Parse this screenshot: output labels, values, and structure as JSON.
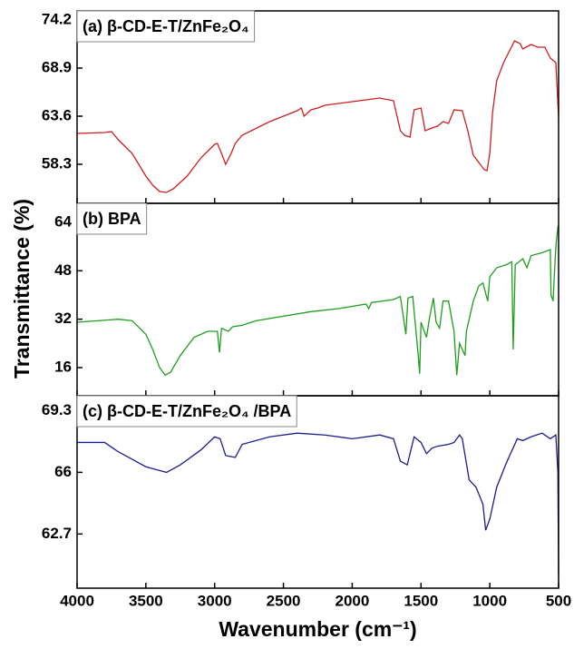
{
  "chart_data": [
    {
      "type": "line",
      "title": "(a) β-CD-E-T/ZnFe₂O₄",
      "color": "#cc1f1f",
      "xlim": [
        4000,
        500
      ],
      "ylim": [
        54.0,
        75.2
      ],
      "yticks": [
        74.2,
        68.9,
        63.6,
        58.3
      ],
      "x": [
        4000,
        3800,
        3750,
        3700,
        3600,
        3500,
        3450,
        3400,
        3350,
        3300,
        3200,
        3100,
        3000,
        2980,
        2950,
        2920,
        2880,
        2850,
        2800,
        2600,
        2400,
        2370,
        2350,
        2300,
        2250,
        2200,
        2000,
        1800,
        1700,
        1650,
        1620,
        1580,
        1550,
        1500,
        1470,
        1420,
        1380,
        1340,
        1300,
        1260,
        1200,
        1160,
        1120,
        1080,
        1040,
        1020,
        1000,
        980,
        950,
        900,
        850,
        820,
        780,
        760,
        700,
        650,
        600,
        560,
        520,
        505,
        500
      ],
      "values": [
        61.7,
        61.8,
        61.9,
        61.0,
        59.5,
        57.0,
        56.0,
        55.3,
        55.2,
        55.6,
        57.0,
        59.0,
        60.5,
        60.6,
        59.5,
        58.3,
        59.5,
        60.6,
        61.5,
        63.0,
        64.2,
        64.5,
        63.6,
        64.3,
        64.5,
        64.8,
        65.2,
        65.6,
        65.3,
        62.0,
        61.5,
        61.3,
        64.3,
        64.5,
        62.0,
        62.3,
        62.5,
        63.0,
        62.8,
        64.3,
        64.2,
        62.0,
        59.3,
        58.5,
        57.7,
        57.6,
        59.5,
        64.0,
        67.5,
        69.5,
        71.0,
        71.9,
        71.6,
        71.0,
        71.5,
        71.2,
        71.2,
        70.0,
        69.5,
        65.0,
        63.5
      ]
    },
    {
      "type": "line",
      "title": "(b) BPA",
      "color": "#1e9e1e",
      "ylabel": "Transmittance (%)",
      "xlim": [
        4000,
        500
      ],
      "ylim": [
        6.7,
        70.3
      ],
      "yticks": [
        64,
        48,
        32,
        16
      ],
      "x": [
        4000,
        3700,
        3600,
        3500,
        3450,
        3400,
        3360,
        3320,
        3250,
        3150,
        3050,
        2980,
        2965,
        2950,
        2900,
        2870,
        2800,
        2700,
        2500,
        2300,
        2100,
        1900,
        1880,
        1860,
        1700,
        1650,
        1610,
        1595,
        1560,
        1520,
        1510,
        1500,
        1460,
        1440,
        1410,
        1390,
        1365,
        1340,
        1300,
        1260,
        1240,
        1220,
        1180,
        1170,
        1120,
        1080,
        1050,
        1015,
        1000,
        950,
        880,
        840,
        830,
        815,
        760,
        730,
        700,
        620,
        560,
        555,
        540,
        520,
        505,
        500
      ],
      "values": [
        31,
        32,
        31.5,
        27,
        22,
        16,
        13.5,
        14.5,
        20,
        26,
        28,
        28,
        21,
        29,
        28,
        29.5,
        30,
        31.5,
        33,
        34.5,
        35.5,
        37,
        35.5,
        37.5,
        38.5,
        39.5,
        27,
        39,
        39.5,
        20,
        14,
        31,
        26,
        32,
        39,
        31,
        29,
        38,
        38,
        28,
        13.5,
        24,
        20,
        28,
        38,
        43,
        44,
        38,
        46,
        49,
        50,
        51,
        22,
        50,
        52,
        49,
        53,
        54,
        55,
        40,
        38,
        56,
        62.5,
        63
      ]
    },
    {
      "type": "line",
      "title": "(c) β-CD-E-T/ZnFe₂O₄ /BPA",
      "color": "#1c1c8f",
      "xlabel": "Wavenumber (cm⁻¹)",
      "xlim": [
        4000,
        500
      ],
      "ylim": [
        59.8,
        70.1
      ],
      "yticks": [
        69.3,
        66.0,
        62.7
      ],
      "xticks": [
        4000,
        3500,
        3000,
        2500,
        2000,
        1500,
        1000,
        500
      ],
      "x": [
        4000,
        3800,
        3700,
        3600,
        3500,
        3400,
        3350,
        3250,
        3100,
        3000,
        2960,
        2920,
        2850,
        2800,
        2600,
        2400,
        2200,
        2000,
        1800,
        1700,
        1650,
        1600,
        1550,
        1500,
        1460,
        1420,
        1380,
        1300,
        1260,
        1220,
        1200,
        1150,
        1100,
        1050,
        1030,
        1000,
        950,
        880,
        800,
        760,
        700,
        620,
        560,
        520,
        505,
        500
      ],
      "values": [
        67.6,
        67.6,
        67.1,
        66.7,
        66.3,
        66.1,
        66.0,
        66.4,
        67.2,
        67.9,
        67.8,
        66.9,
        66.8,
        67.5,
        67.9,
        68.1,
        68.0,
        67.8,
        68.0,
        67.8,
        66.6,
        66.4,
        67.9,
        67.6,
        67.0,
        67.3,
        67.4,
        67.5,
        67.6,
        68.0,
        67.8,
        65.6,
        65.2,
        64.3,
        62.9,
        63.5,
        65.2,
        66.5,
        67.8,
        67.7,
        67.9,
        68.1,
        67.8,
        68.0,
        66.0,
        60.5
      ]
    }
  ]
}
